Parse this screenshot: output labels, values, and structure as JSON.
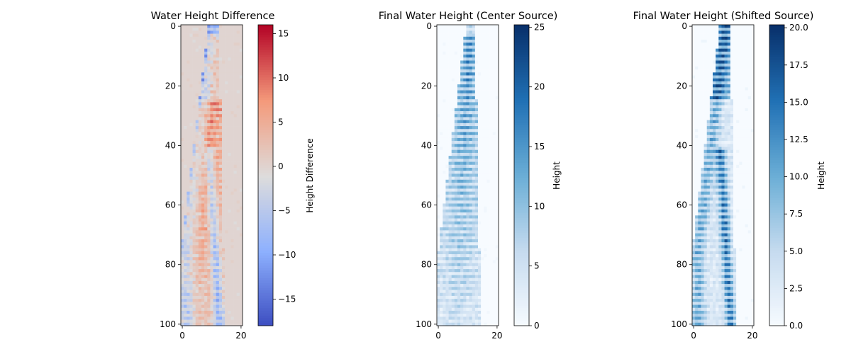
{
  "chart_data": [
    {
      "type": "heatmap",
      "title": "Water Height Difference",
      "colormap": "coolwarm",
      "grid_shape": [
        101,
        21
      ],
      "x_ticks": [
        0,
        20
      ],
      "y_ticks": [
        0,
        20,
        40,
        60,
        80,
        100
      ],
      "colorbar": {
        "label": "Height Difference",
        "range": [
          -18,
          16
        ],
        "ticks": [
          "15",
          "10",
          "5",
          "0",
          "−5",
          "−10",
          "−15"
        ],
        "tick_values": [
          15,
          10,
          5,
          0,
          -5,
          -10,
          -15
        ]
      },
      "pattern": "difference"
    },
    {
      "type": "heatmap",
      "title": "Final Water Height (Center Source)",
      "colormap": "Blues",
      "grid_shape": [
        101,
        21
      ],
      "x_ticks": [
        0,
        20
      ],
      "y_ticks": [
        0,
        20,
        40,
        60,
        80,
        100
      ],
      "colorbar": {
        "label": "Height",
        "range": [
          0,
          25.2
        ],
        "ticks": [
          "25",
          "20",
          "15",
          "10",
          "5",
          "0"
        ],
        "tick_values": [
          25,
          20,
          15,
          10,
          5,
          0
        ]
      },
      "pattern": "center"
    },
    {
      "type": "heatmap",
      "title": "Final Water Height (Shifted Source)",
      "colormap": "Blues",
      "grid_shape": [
        101,
        21
      ],
      "x_ticks": [
        0,
        20
      ],
      "y_ticks": [
        0,
        20,
        40,
        60,
        80,
        100
      ],
      "colorbar": {
        "label": "Height",
        "range": [
          0,
          20.2
        ],
        "ticks": [
          "20.0",
          "17.5",
          "15.0",
          "12.5",
          "10.0",
          "7.5",
          "5.0",
          "2.5",
          "0.0"
        ],
        "tick_values": [
          20,
          17.5,
          15,
          12.5,
          10,
          7.5,
          5,
          2.5,
          0
        ]
      },
      "pattern": "shifted"
    }
  ]
}
